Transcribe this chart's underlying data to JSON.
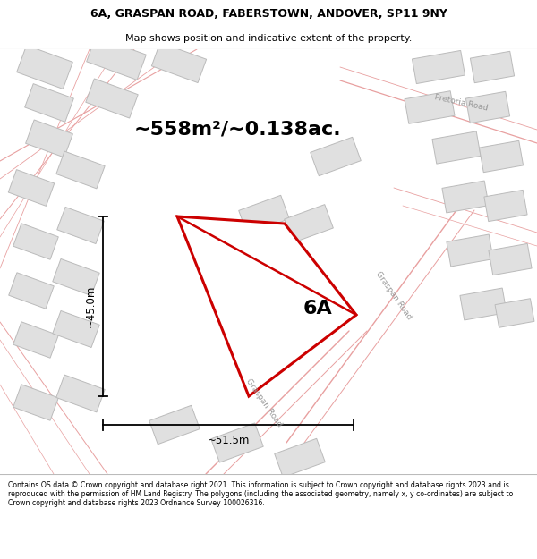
{
  "title_line1": "6A, GRASPAN ROAD, FABERSTOWN, ANDOVER, SP11 9NY",
  "title_line2": "Map shows position and indicative extent of the property.",
  "area_text": "~558m²/~0.138ac.",
  "label_6A": "6A",
  "dim_height": "~45.0m",
  "dim_width": "~51.5m",
  "road_label_graspan_mid": "Graspan Road",
  "road_label_graspan_bot": "Graspan Road",
  "road_label_pretoria": "Pretoria Road",
  "footer_text": "Contains OS data © Crown copyright and database right 2021. This information is subject to Crown copyright and database rights 2023 and is reproduced with the permission of HM Land Registry. The polygons (including the associated geometry, namely x, y co-ordinates) are subject to Crown copyright and database rights 2023 Ordnance Survey 100026316.",
  "map_bg": "#ffffff",
  "building_fill": "#e0e0e0",
  "building_edge": "#bbbbbb",
  "road_line_color": "#e8a0a0",
  "highlight_fill": "#ffffff",
  "highlight_edge": "#cc0000",
  "dim_line_color": "#000000",
  "header_footer_bg": "#ffffff",
  "road_label_color": "#999999"
}
